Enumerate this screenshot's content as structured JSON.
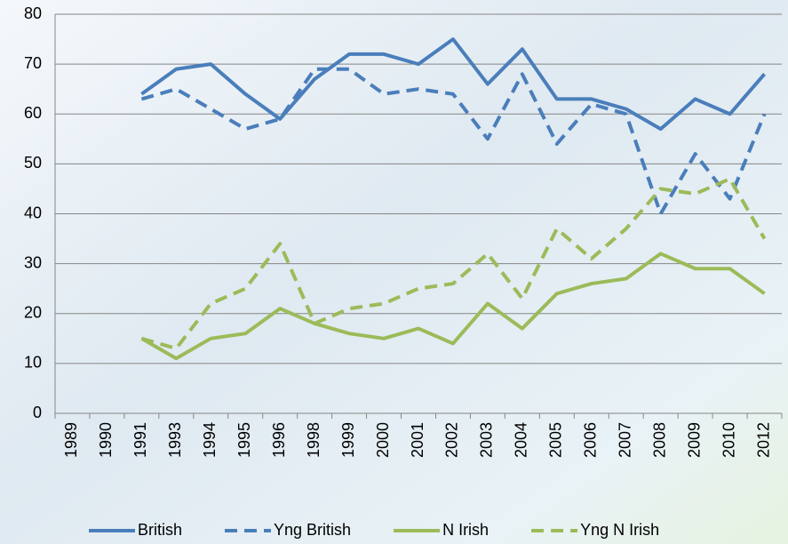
{
  "chart_data": {
    "type": "line",
    "categories": [
      "1989",
      "1990",
      "1991",
      "1993",
      "1994",
      "1995",
      "1996",
      "1998",
      "1999",
      "2000",
      "2001",
      "2002",
      "2003",
      "2004",
      "2005",
      "2006",
      "2007",
      "2008",
      "2009",
      "2010",
      "2012"
    ],
    "series": [
      {
        "name": "British",
        "color": "#4a7ebb",
        "style": "solid",
        "values": [
          null,
          null,
          64,
          69,
          70,
          64,
          59,
          67,
          72,
          72,
          70,
          75,
          66,
          73,
          63,
          63,
          61,
          57,
          63,
          60,
          68
        ]
      },
      {
        "name": "Yng British",
        "color": "#4a7ebb",
        "style": "dashed",
        "values": [
          null,
          null,
          63,
          65,
          61,
          57,
          59,
          69,
          69,
          64,
          65,
          64,
          55,
          68,
          54,
          62,
          60,
          40,
          52,
          43,
          60
        ]
      },
      {
        "name": "N Irish",
        "color": "#9bbb59",
        "style": "solid",
        "values": [
          null,
          null,
          15,
          11,
          15,
          16,
          21,
          18,
          16,
          15,
          17,
          14,
          22,
          17,
          24,
          26,
          27,
          32,
          29,
          29,
          24
        ]
      },
      {
        "name": "Yng N Irish",
        "color": "#9bbb59",
        "style": "dashed",
        "values": [
          null,
          null,
          15,
          13,
          22,
          25,
          34,
          18,
          21,
          22,
          25,
          26,
          32,
          23,
          37,
          31,
          37,
          45,
          44,
          47,
          35
        ]
      }
    ],
    "ylim": [
      0,
      80
    ],
    "yticks": [
      0,
      10,
      20,
      30,
      40,
      50,
      60,
      70,
      80
    ],
    "grid": true,
    "legend": "bottom"
  }
}
